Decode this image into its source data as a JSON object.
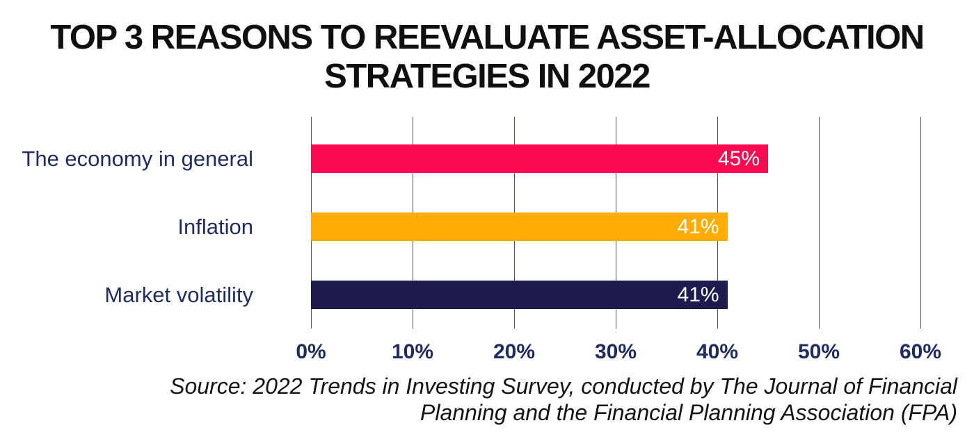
{
  "title": {
    "lines": [
      "TOP 3 REASONS TO REEVALUATE ASSET-ALLOCATION",
      "STRATEGIES IN 2022"
    ]
  },
  "source": {
    "lines": [
      "Source: 2022 Trends in Investing Survey, conducted by The Journal of Financial",
      "Planning and the Financial Planning Association (FPA)"
    ]
  },
  "chart_data": {
    "type": "bar",
    "orientation": "horizontal",
    "title": "TOP 3 REASONS TO REEVALUATE ASSET-ALLOCATION STRATEGIES IN 2022",
    "categories": [
      "The economy in general",
      "Inflation",
      "Market volatility"
    ],
    "values": [
      45,
      41,
      41
    ],
    "value_labels": [
      "45%",
      "41%",
      "41%"
    ],
    "bar_colors": [
      "#fa0a4e",
      "#fcac04",
      "#1e1c4e"
    ],
    "x_ticks": [
      0,
      10,
      20,
      30,
      40,
      50,
      60
    ],
    "x_tick_labels": [
      "0%",
      "10%",
      "20%",
      "30%",
      "40%",
      "50%",
      "60%"
    ],
    "xlim": [
      0,
      60
    ],
    "grid": "vertical-gridlines-on",
    "legend": "none",
    "value_label_position": "inside-end"
  },
  "colors": {
    "bar_economy": "#fa0a4e",
    "bar_inflation": "#fcac04",
    "bar_market_volatility": "#1e1c4e",
    "gridline": "#50506e",
    "axis_text": "#202b5e",
    "category_text": "#202b5e",
    "value_text": "#ffffff",
    "title_text": "#0f0f0f",
    "source_text": "#121212",
    "background": "#ffffff"
  }
}
